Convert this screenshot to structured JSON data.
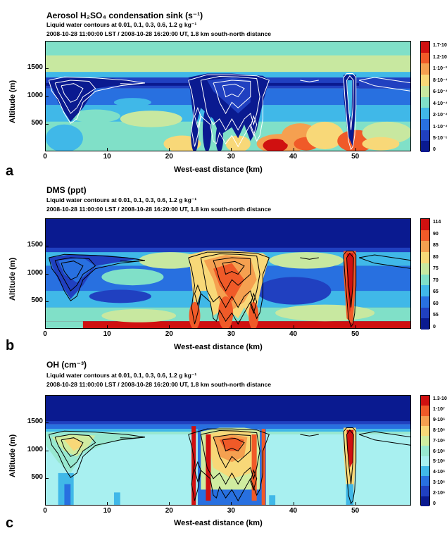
{
  "chart_data": [
    {
      "type": "heatmap",
      "panel_label": "a",
      "title": "Aerosol H₂SO₄ condensation sink (s⁻¹)",
      "subtitle1": "Liquid water contours at  0.01,  0.1,  0.3,  0.6,  1.2 g kg⁻¹",
      "subtitle2": "2008-10-28 11:00:00 LST / 2008-10-28 16:20:00 UT, 1.8 km south-north distance",
      "xlabel": "West-east distance (km)",
      "ylabel": "Altitude (m)",
      "xlim": [
        0,
        59
      ],
      "ylim": [
        0,
        2000
      ],
      "xticks": [
        "0",
        "10",
        "20",
        "30",
        "40",
        "50"
      ],
      "yticks": [
        "500",
        "1000",
        "1500"
      ],
      "colorbar_labels": [
        "1.7·10⁻³",
        "1.2·10⁻³",
        "1·10⁻³",
        "8·10⁻⁴",
        "6·10⁻⁴",
        "4·10⁻⁴",
        "2·10⁻⁴",
        "1·10⁻⁴",
        "5·10⁻⁵",
        "0"
      ],
      "colors": [
        "#d01010",
        "#f05a28",
        "#f5a050",
        "#f8d878",
        "#c8e8a0",
        "#80e0c8",
        "#40b8e8",
        "#2870e0",
        "#2040c0",
        "#0a1a90"
      ],
      "contour_color": "#ffffff"
    },
    {
      "type": "heatmap",
      "panel_label": "b",
      "title": "DMS (ppt)",
      "subtitle1": "Liquid water contours at  0.01,  0.1,  0.3,  0.6,  1.2 g kg⁻¹",
      "subtitle2": "2008-10-28 11:00:00 LST / 2008-10-28 16:20:00 UT, 1.8 km south-north distance",
      "xlabel": "West-east distance (km)",
      "ylabel": "Altitude (m)",
      "xlim": [
        0,
        59
      ],
      "ylim": [
        0,
        2000
      ],
      "xticks": [
        "0",
        "10",
        "20",
        "30",
        "40",
        "50"
      ],
      "yticks": [
        "500",
        "1000",
        "1500"
      ],
      "colorbar_labels": [
        "114",
        "90",
        "85",
        "80",
        "75",
        "70",
        "65",
        "60",
        "55",
        "0"
      ],
      "colors": [
        "#d01010",
        "#f05a28",
        "#f5a050",
        "#f8d878",
        "#c8e8a0",
        "#80e0c8",
        "#40b8e8",
        "#2870e0",
        "#2040c0",
        "#0a1a90"
      ],
      "contour_color": "#000000"
    },
    {
      "type": "heatmap",
      "panel_label": "c",
      "title": "OH (cm⁻³)",
      "subtitle1": "Liquid water contours at  0.01,  0.1,  0.3,  0.6,  1.2 g kg⁻¹",
      "subtitle2": "2008-10-28 11:00:00 LST / 2008-10-28 16:20:00 UT, 1.8 km south-north distance",
      "xlabel": "West-east distance (km)",
      "ylabel": "Altitude (m)",
      "xlim": [
        0,
        59
      ],
      "ylim": [
        0,
        2000
      ],
      "xticks": [
        "0",
        "10",
        "20",
        "30",
        "40",
        "50"
      ],
      "yticks": [
        "500",
        "1000",
        "1500"
      ],
      "colorbar_labels": [
        "1.3·10⁷",
        "1·10⁷",
        "9·10⁶",
        "8·10⁶",
        "7·10⁶",
        "6·10⁶",
        "5·10⁶",
        "4·10⁶",
        "3·10⁶",
        "2·10⁶",
        "0"
      ],
      "colors": [
        "#d01010",
        "#f05a28",
        "#f5a050",
        "#f8d878",
        "#d0eca0",
        "#98e8d0",
        "#a8f0f0",
        "#40b8e8",
        "#2870e0",
        "#2040c0",
        "#0a1a90"
      ],
      "contour_color": "#000000"
    }
  ]
}
